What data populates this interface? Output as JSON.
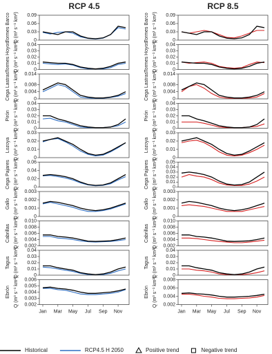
{
  "chart_data": [
    {
      "type": "line",
      "title": "RCP 4.5",
      "river": "Tormes Barco",
      "ylabel": "Q (m³ s⁻¹ km²)",
      "ylim": [
        0,
        0.09
      ],
      "yticks": [
        0,
        0.03,
        0.06,
        0.09
      ],
      "series": [
        {
          "color": "#000000",
          "values": [
            0.03,
            0.025,
            0.02,
            0.03,
            0.03,
            0.015,
            0.007,
            0.005,
            0.008,
            0.02,
            0.05,
            0.045
          ]
        },
        {
          "color": "#2f6fc4",
          "values": [
            0.028,
            0.022,
            0.028,
            0.03,
            0.025,
            0.012,
            0.006,
            0.004,
            0.007,
            0.02,
            0.045,
            0.04
          ]
        }
      ]
    },
    {
      "type": "line",
      "river": "Tormes Hoyos",
      "ylabel": "Q (m³ s⁻¹ km²)",
      "ylim": [
        0,
        0.04
      ],
      "yticks": [
        0,
        0.01,
        0.02,
        0.03,
        0.04
      ],
      "series": [
        {
          "color": "#000000",
          "values": [
            0.012,
            0.011,
            0.01,
            0.01,
            0.008,
            0.004,
            0.002,
            0.001,
            0.002,
            0.005,
            0.01,
            0.012
          ]
        },
        {
          "color": "#2f6fc4",
          "values": [
            0.01,
            0.009,
            0.008,
            0.009,
            0.007,
            0.003,
            0.001,
            0.001,
            0.001,
            0.003,
            0.008,
            0.01
          ]
        }
      ]
    },
    {
      "type": "line",
      "river": "Cega Lastras",
      "ylabel": "Q (m³ s⁻¹ km²)",
      "ylim": [
        0,
        0.014
      ],
      "yticks": [
        0,
        0.004,
        0.008,
        0.014
      ],
      "series": [
        {
          "color": "#000000",
          "values": [
            0.005,
            0.007,
            0.009,
            0.008,
            0.005,
            0.002,
            0.001,
            0.0005,
            0.0005,
            0.001,
            0.002,
            0.004
          ]
        },
        {
          "color": "#2f6fc4",
          "values": [
            0.004,
            0.006,
            0.008,
            0.007,
            0.004,
            0.001,
            0.0005,
            0.0003,
            0.0003,
            0.0008,
            0.0015,
            0.003
          ]
        }
      ]
    },
    {
      "type": "line",
      "river": "Pirón",
      "ylabel": "Q (m³ s⁻¹ km²)",
      "ylim": [
        0,
        0.04
      ],
      "yticks": [
        0,
        0.01,
        0.02,
        0.03,
        0.04
      ],
      "series": [
        {
          "color": "#000000",
          "values": [
            0.02,
            0.02,
            0.015,
            0.012,
            0.008,
            0.004,
            0.002,
            0.001,
            0.001,
            0.002,
            0.006,
            0.015
          ]
        },
        {
          "color": "#2f6fc4",
          "values": [
            0.015,
            0.016,
            0.012,
            0.01,
            0.006,
            0.002,
            0.001,
            0.001,
            0.001,
            0.002,
            0.004,
            0.01
          ]
        }
      ]
    },
    {
      "type": "line",
      "river": "Lozoya",
      "ylabel": "Q (m³ s⁻¹ km²)",
      "ylim": [
        0,
        0.03
      ],
      "yticks": [
        0,
        0.01,
        0.02,
        0.03
      ],
      "series": [
        {
          "color": "#000000",
          "values": [
            0.02,
            0.022,
            0.024,
            0.02,
            0.016,
            0.01,
            0.005,
            0.003,
            0.004,
            0.008,
            0.013,
            0.018
          ]
        },
        {
          "color": "#2f6fc4",
          "values": [
            0.019,
            0.022,
            0.023,
            0.019,
            0.014,
            0.008,
            0.004,
            0.002,
            0.003,
            0.007,
            0.012,
            0.018
          ]
        }
      ]
    },
    {
      "type": "line",
      "river": "Cega Pajares",
      "ylabel": "Q (m³ s⁻¹ km²)",
      "ylim": [
        0,
        0.06
      ],
      "yticks": [
        0,
        0.02,
        0.04,
        0.06
      ],
      "series": [
        {
          "color": "#000000",
          "values": [
            0.028,
            0.03,
            0.028,
            0.025,
            0.02,
            0.012,
            0.006,
            0.004,
            0.005,
            0.01,
            0.02,
            0.03
          ]
        },
        {
          "color": "#2f6fc4",
          "values": [
            0.027,
            0.028,
            0.025,
            0.022,
            0.017,
            0.01,
            0.005,
            0.003,
            0.004,
            0.008,
            0.017,
            0.025
          ]
        }
      ]
    },
    {
      "type": "line",
      "river": "Gallo",
      "ylabel": "Q (m³ s⁻¹ km²)",
      "ylim": [
        0,
        0.003
      ],
      "yticks": [
        0,
        0.001,
        0.002,
        0.003
      ],
      "series": [
        {
          "color": "#000000",
          "values": [
            0.0016,
            0.0018,
            0.0017,
            0.0015,
            0.0013,
            0.001,
            0.0008,
            0.0007,
            0.0008,
            0.001,
            0.0013,
            0.0016
          ]
        },
        {
          "color": "#2f6fc4",
          "values": [
            0.0015,
            0.0017,
            0.0015,
            0.0013,
            0.0011,
            0.0008,
            0.0006,
            0.0006,
            0.0007,
            0.0009,
            0.0012,
            0.0015
          ]
        }
      ]
    },
    {
      "type": "line",
      "river": "Cabrillas",
      "ylabel": "Q (m³ s⁻¹ km²)",
      "ylim": [
        0.002,
        0.01
      ],
      "yticks": [
        0.002,
        0.004,
        0.006,
        0.008,
        {
          "value": 0.01,
          "label": "0.010"
        }
      ],
      "series": [
        {
          "color": "#000000",
          "values": [
            0.0055,
            0.0055,
            0.005,
            0.0048,
            0.0045,
            0.004,
            0.0035,
            0.0034,
            0.0035,
            0.0036,
            0.004,
            0.0045
          ]
        },
        {
          "color": "#2f6fc4",
          "values": [
            0.005,
            0.005,
            0.0045,
            0.0043,
            0.004,
            0.0036,
            0.0033,
            0.0032,
            0.0033,
            0.0034,
            0.0037,
            0.004
          ]
        }
      ]
    },
    {
      "type": "line",
      "river": "Tagus",
      "ylabel": "Q (m³ s⁻¹ km²)",
      "ylim": [
        0,
        0.04
      ],
      "yticks": [
        0,
        0.01,
        0.02,
        0.03,
        0.04
      ],
      "series": [
        {
          "color": "#000000",
          "values": [
            0.015,
            0.015,
            0.012,
            0.01,
            0.008,
            0.004,
            0.002,
            0.001,
            0.002,
            0.005,
            0.01,
            0.013
          ]
        },
        {
          "color": "#2f6fc4",
          "values": [
            0.013,
            0.012,
            0.01,
            0.008,
            0.006,
            0.003,
            0.001,
            0.001,
            0.001,
            0.003,
            0.007,
            0.01
          ]
        }
      ]
    },
    {
      "type": "line",
      "river": "Ebrón",
      "ylabel": "Q (m³ s⁻¹ km²)",
      "ylim": [
        0.002,
        0.006
      ],
      "yticks": [
        0.002,
        0.003,
        0.004,
        0.005,
        0.006
      ],
      "categories": [
        "Jan",
        null,
        "Mar",
        null,
        "May",
        null,
        "Jul",
        null,
        "Sep",
        null,
        "Nov",
        null
      ],
      "series": [
        {
          "color": "#000000",
          "values": [
            0.0047,
            0.0048,
            0.0046,
            0.0045,
            0.0043,
            0.004,
            0.0038,
            0.0038,
            0.0039,
            0.004,
            0.0042,
            0.0045
          ]
        },
        {
          "color": "#2f6fc4",
          "values": [
            0.0046,
            0.0046,
            0.0044,
            0.0043,
            0.004,
            0.0037,
            0.0036,
            0.0036,
            0.0037,
            0.0038,
            0.004,
            0.0044
          ]
        }
      ]
    },
    {
      "type": "line",
      "title": "RCP 8.5",
      "river": "Tormes Barco",
      "ylabel": "Q (m³ s⁻¹ km²)",
      "ylim": [
        0,
        0.09
      ],
      "yticks": [
        0,
        0.03,
        0.06,
        0.09
      ],
      "series": [
        {
          "color": "#000000",
          "values": [
            0.03,
            0.025,
            0.02,
            0.03,
            0.03,
            0.015,
            0.007,
            0.005,
            0.008,
            0.02,
            0.05,
            0.045
          ]
        },
        {
          "color": "#d62020",
          "values": [
            0.03,
            0.025,
            0.03,
            0.035,
            0.03,
            0.02,
            0.01,
            0.008,
            0.015,
            0.025,
            0.035,
            0.035
          ]
        }
      ]
    },
    {
      "type": "line",
      "river": "Tormes Hoyos",
      "ylabel": "Q (m³ s⁻¹ km²)",
      "ylim": [
        0,
        0.04
      ],
      "yticks": [
        0,
        0.01,
        0.02,
        0.03,
        0.04
      ],
      "series": [
        {
          "color": "#000000",
          "values": [
            0.012,
            0.011,
            0.01,
            0.01,
            0.008,
            0.004,
            0.002,
            0.001,
            0.002,
            0.005,
            0.01,
            0.012
          ]
        },
        {
          "color": "#d62020",
          "values": [
            0.012,
            0.01,
            0.011,
            0.012,
            0.01,
            0.005,
            0.003,
            0.002,
            0.003,
            0.008,
            0.012,
            0.011
          ]
        }
      ]
    },
    {
      "type": "line",
      "river": "Cega Lastras",
      "ylabel": "Q (m³ s⁻¹ km²)",
      "ylim": [
        0,
        0.014
      ],
      "yticks": [
        0,
        0.004,
        0.008,
        0.014
      ],
      "series": [
        {
          "color": "#000000",
          "values": [
            0.005,
            0.007,
            0.009,
            0.008,
            0.005,
            0.002,
            0.001,
            0.0005,
            0.0005,
            0.001,
            0.002,
            0.004
          ]
        },
        {
          "color": "#d62020",
          "values": [
            0.004,
            0.007,
            0.008,
            0.006,
            0.003,
            0.001,
            0.0004,
            0.0003,
            0.0003,
            0.0005,
            0.001,
            0.003
          ]
        }
      ]
    },
    {
      "type": "line",
      "river": "Pirón",
      "ylabel": "Q (m³ s⁻¹ km²)",
      "ylim": [
        0,
        0.04
      ],
      "yticks": [
        0,
        0.01,
        0.02,
        0.03,
        0.04
      ],
      "series": [
        {
          "color": "#000000",
          "values": [
            0.02,
            0.02,
            0.015,
            0.012,
            0.008,
            0.004,
            0.002,
            0.001,
            0.001,
            0.002,
            0.006,
            0.015
          ]
        },
        {
          "color": "#d62020",
          "values": [
            0.01,
            0.01,
            0.01,
            0.008,
            0.005,
            0.002,
            0.001,
            0.001,
            0.001,
            0.002,
            0.003,
            0.007
          ]
        }
      ]
    },
    {
      "type": "line",
      "river": "Lozoya",
      "ylabel": "Q (m³ s⁻¹ km²)",
      "ylim": [
        0,
        0.03
      ],
      "yticks": [
        0,
        0.01,
        0.02,
        0.03
      ],
      "series": [
        {
          "color": "#000000",
          "values": [
            0.02,
            0.022,
            0.024,
            0.02,
            0.016,
            0.01,
            0.005,
            0.003,
            0.004,
            0.008,
            0.013,
            0.018
          ]
        },
        {
          "color": "#d62020",
          "values": [
            0.018,
            0.02,
            0.021,
            0.018,
            0.013,
            0.007,
            0.003,
            0.002,
            0.003,
            0.006,
            0.01,
            0.015
          ]
        }
      ]
    },
    {
      "type": "line",
      "river": "Cega Pajares",
      "ylabel": "Q (m³ s⁻¹ km²)",
      "ylim": [
        0,
        0.05
      ],
      "yticks": [
        0,
        0.01,
        0.02,
        0.03,
        0.04,
        0.05
      ],
      "series": [
        {
          "color": "#000000",
          "values": [
            0.028,
            0.03,
            0.028,
            0.025,
            0.02,
            0.012,
            0.006,
            0.004,
            0.005,
            0.01,
            0.02,
            0.03
          ]
        },
        {
          "color": "#d62020",
          "values": [
            0.02,
            0.025,
            0.022,
            0.02,
            0.015,
            0.008,
            0.004,
            0.003,
            0.003,
            0.006,
            0.012,
            0.02
          ]
        }
      ]
    },
    {
      "type": "line",
      "river": "Gallo",
      "ylabel": "Q (m³ s⁻¹ km²)",
      "ylim": [
        0,
        0.003
      ],
      "yticks": [
        0,
        0.001,
        0.002,
        0.003
      ],
      "series": [
        {
          "color": "#000000",
          "values": [
            0.0016,
            0.0018,
            0.0017,
            0.0015,
            0.0013,
            0.001,
            0.0008,
            0.0007,
            0.0008,
            0.001,
            0.0013,
            0.0016
          ]
        },
        {
          "color": "#d62020",
          "values": [
            0.0013,
            0.0014,
            0.0013,
            0.0012,
            0.001,
            0.0008,
            0.0006,
            0.0006,
            0.0006,
            0.0008,
            0.001,
            0.0012
          ]
        }
      ]
    },
    {
      "type": "line",
      "river": "Cabrillas",
      "ylabel": "Q (m³ s⁻¹ km²)",
      "ylim": [
        0.002,
        0.01
      ],
      "yticks": [
        0.002,
        0.004,
        0.006,
        0.008,
        {
          "value": 0.01,
          "label": "0.010"
        }
      ],
      "series": [
        {
          "color": "#000000",
          "values": [
            0.0055,
            0.0055,
            0.005,
            0.0048,
            0.0045,
            0.004,
            0.0035,
            0.0034,
            0.0035,
            0.0036,
            0.004,
            0.0045
          ]
        },
        {
          "color": "#d62020",
          "values": [
            0.0045,
            0.0045,
            0.0043,
            0.004,
            0.0037,
            0.0034,
            0.0032,
            0.003,
            0.003,
            0.0032,
            0.0035,
            0.0038
          ]
        }
      ]
    },
    {
      "type": "line",
      "river": "Tagus",
      "ylabel": "Q (m³ s⁻¹ km²)",
      "ylim": [
        0,
        0.04
      ],
      "yticks": [
        0,
        0.01,
        0.02,
        0.03,
        0.04
      ],
      "series": [
        {
          "color": "#000000",
          "values": [
            0.015,
            0.015,
            0.012,
            0.01,
            0.008,
            0.004,
            0.002,
            0.001,
            0.002,
            0.005,
            0.01,
            0.013
          ]
        },
        {
          "color": "#d62020",
          "values": [
            0.01,
            0.01,
            0.008,
            0.007,
            0.005,
            0.002,
            0.001,
            0.001,
            0.001,
            0.002,
            0.004,
            0.007
          ]
        }
      ]
    },
    {
      "type": "line",
      "river": "Ebrón",
      "ylabel": "Q (m³ s⁻¹ km²)",
      "ylim": [
        0.002,
        0.008
      ],
      "yticks": [
        0.002,
        0.004,
        0.006,
        0.008
      ],
      "categories": [
        "Jan",
        null,
        "Mar",
        null,
        "May",
        null,
        "Jul",
        null,
        "Sep",
        null,
        "Nov",
        null
      ],
      "series": [
        {
          "color": "#000000",
          "values": [
            0.0047,
            0.0048,
            0.0046,
            0.0045,
            0.0043,
            0.004,
            0.0038,
            0.0038,
            0.0039,
            0.004,
            0.0042,
            0.0045
          ]
        },
        {
          "color": "#d62020",
          "values": [
            0.0045,
            0.0045,
            0.0043,
            0.004,
            0.0038,
            0.0035,
            0.0034,
            0.0034,
            0.0035,
            0.0036,
            0.0038,
            0.0042
          ]
        }
      ]
    }
  ],
  "legend": [
    {
      "label": "Historical",
      "color": "#000000",
      "marker": "line"
    },
    {
      "label": "RCP4.5 H 2050",
      "color": "#2f6fc4",
      "marker": "line"
    },
    {
      "label": "Positive trend",
      "color": "#000000",
      "marker": "triangle"
    },
    {
      "label": "Negative trend",
      "color": "#000000",
      "marker": "square"
    }
  ]
}
